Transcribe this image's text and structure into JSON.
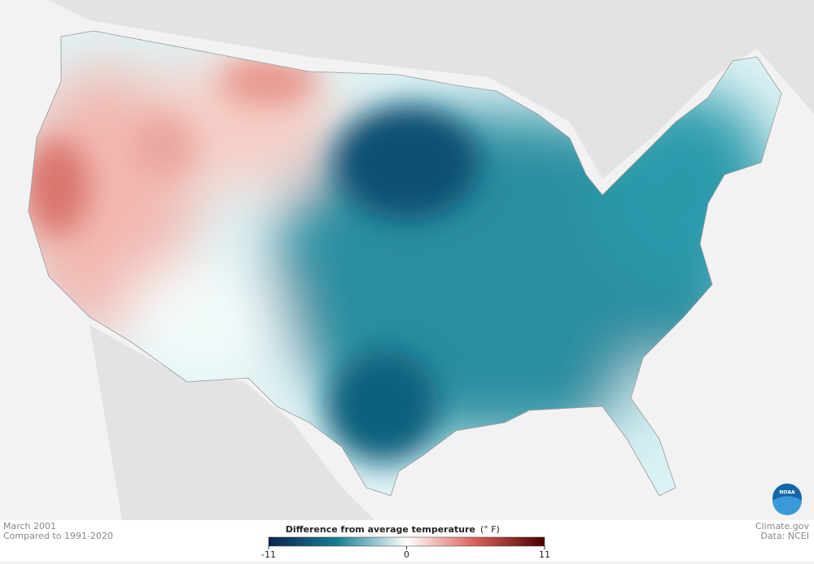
{
  "header": {
    "period": "March 2001",
    "baseline": "Compared to 1991-2020"
  },
  "legend": {
    "title": "Difference from average temperature",
    "unit": "(° F)",
    "min": -11,
    "max": 11,
    "ticks": [
      -11,
      0,
      11
    ],
    "colors": [
      "#0b2350",
      "#1a7f93",
      "#ffffff",
      "#d9605a",
      "#4a0000"
    ]
  },
  "credits": {
    "site": "Climate.gov",
    "source": "Data: NCEI",
    "logo": "NOAA"
  }
}
